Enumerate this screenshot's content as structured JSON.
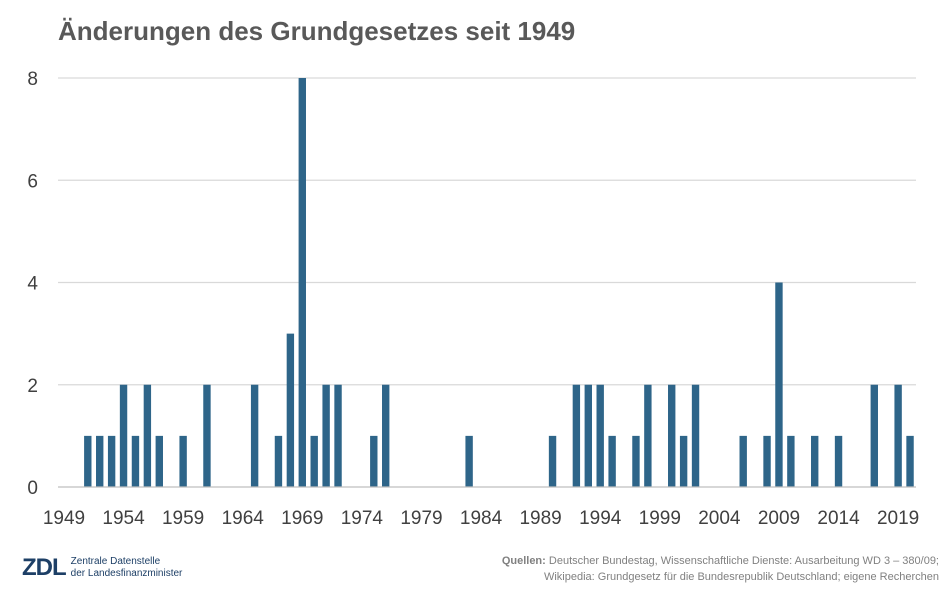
{
  "chart_data": {
    "type": "bar",
    "title": "Änderungen des Grundgesetzes seit 1949",
    "color": "#2e6589",
    "ylim": [
      0,
      8
    ],
    "yticks": [
      0,
      2,
      4,
      6,
      8
    ],
    "xlim": [
      1949,
      2020
    ],
    "xticks": [
      1949,
      1954,
      1959,
      1964,
      1969,
      1974,
      1979,
      1984,
      1989,
      1994,
      1999,
      2004,
      2009,
      2014,
      2019
    ],
    "grid": true,
    "x": [
      1951,
      1952,
      1953,
      1954,
      1955,
      1956,
      1957,
      1959,
      1961,
      1965,
      1967,
      1968,
      1969,
      1970,
      1971,
      1972,
      1975,
      1976,
      1983,
      1990,
      1992,
      1993,
      1994,
      1995,
      1997,
      1998,
      2000,
      2001,
      2002,
      2006,
      2008,
      2009,
      2010,
      2012,
      2014,
      2017,
      2019,
      2020
    ],
    "values": [
      1,
      1,
      1,
      2,
      1,
      2,
      1,
      1,
      2,
      2,
      1,
      3,
      8,
      1,
      2,
      2,
      1,
      2,
      1,
      1,
      2,
      2,
      2,
      1,
      1,
      2,
      2,
      1,
      2,
      1,
      1,
      4,
      1,
      1,
      1,
      2,
      2,
      1
    ]
  },
  "footer": {
    "logo_mark": "ZDL",
    "logo_line1": "Zentrale Datenstelle",
    "logo_line2": "der Landesfinanzminister",
    "source_label": "Quellen:",
    "source_line1": " Deutscher Bundestag, Wissenschaftliche Dienste: Ausarbeitung WD 3 – 380/09;",
    "source_line2": "Wikipedia: Grundgesetz für die Bundesrepublik Deutschland; eigene Recherchen"
  }
}
